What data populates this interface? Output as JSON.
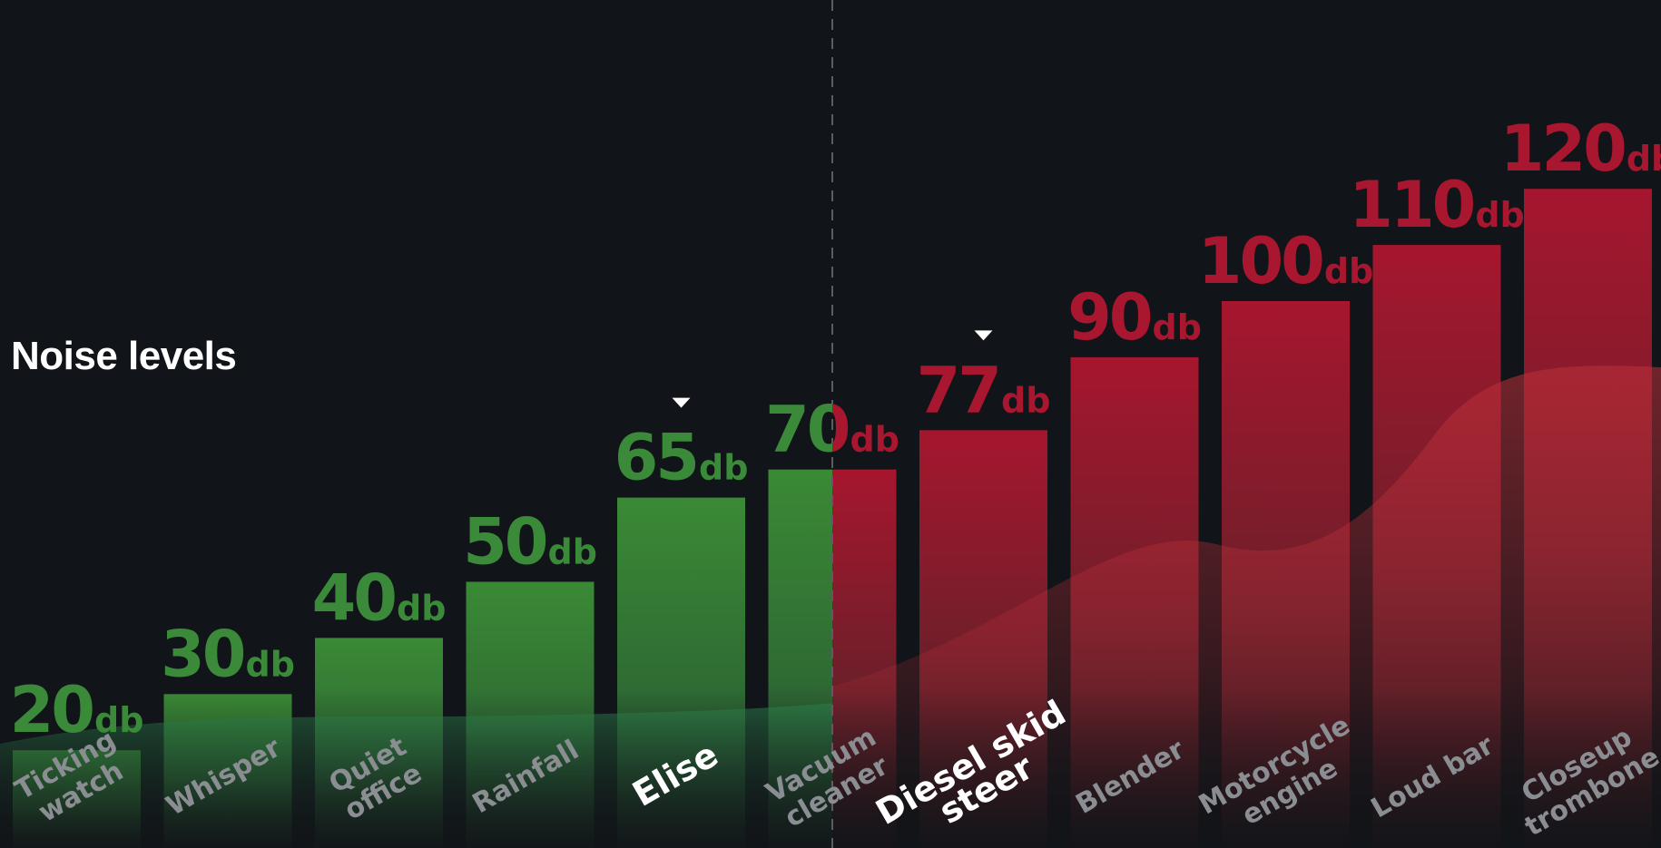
{
  "chart_data": {
    "type": "bar",
    "title": "Noise levels",
    "unit": "db",
    "ylim": [
      0,
      130
    ],
    "categories": [
      "Ticking\nwatch",
      "Whisper",
      "Quiet\noffice",
      "Rainfall",
      "Elise",
      "Vacuum\ncleaner",
      "Diesel skid\nsteer",
      "Blender",
      "Motorcycle\nengine",
      "Loud bar",
      "Closeup\ntrombone"
    ],
    "values": [
      20,
      30,
      40,
      50,
      65,
      70,
      77,
      90,
      100,
      110,
      120
    ],
    "highlighted": [
      "Elise",
      "Diesel skid\nsteer"
    ],
    "threshold": 70,
    "colors": {
      "background": "#111418",
      "safe": "#3a8a3a",
      "loud": "#a8172f",
      "highlight_label": "#ffffff",
      "muted_label": "#8a8d92",
      "threshold_line": "#5a5d62"
    }
  }
}
